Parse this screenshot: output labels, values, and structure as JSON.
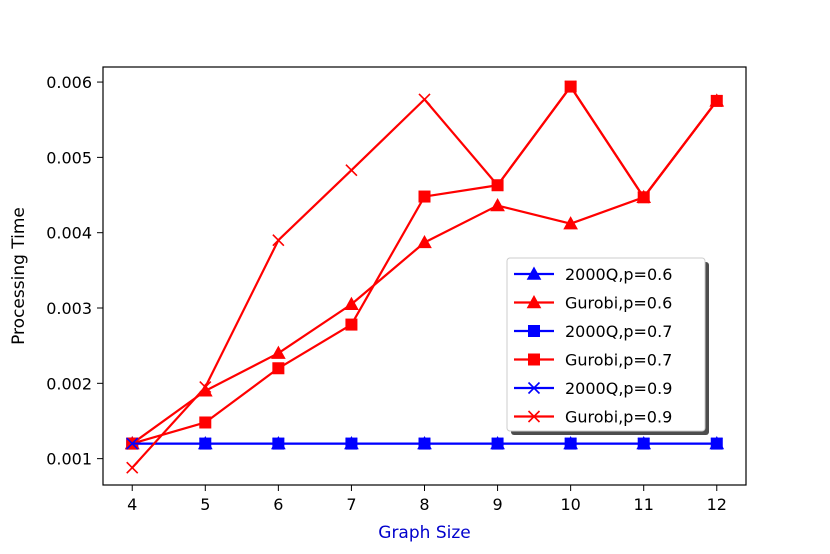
{
  "chart_data": {
    "type": "line",
    "title": "",
    "xlabel": "Graph Size",
    "ylabel": "Processing Time",
    "xlim": [
      3.6,
      12.4
    ],
    "ylim": [
      0.00065,
      0.0062
    ],
    "x": [
      4,
      5,
      6,
      7,
      8,
      9,
      10,
      11,
      12
    ],
    "xticks": [
      "4",
      "5",
      "6",
      "7",
      "8",
      "9",
      "10",
      "11",
      "12"
    ],
    "yticks": [
      {
        "value": 0.001,
        "label": "0.001"
      },
      {
        "value": 0.002,
        "label": "0.002"
      },
      {
        "value": 0.003,
        "label": "0.003"
      },
      {
        "value": 0.004,
        "label": "0.004"
      },
      {
        "value": 0.005,
        "label": "0.005"
      },
      {
        "value": 0.006,
        "label": "0.006"
      }
    ],
    "grid": false,
    "legend_position": "lower-right",
    "colors": {
      "blue": "#0000ff",
      "red": "#ff0000",
      "xlabel": "#0000cc"
    },
    "series": [
      {
        "name": "2000Q,p=0.6",
        "color": "#0000ff",
        "marker": "triangle",
        "values": [
          0.0012,
          0.0012,
          0.0012,
          0.0012,
          0.0012,
          0.0012,
          0.0012,
          0.0012,
          0.0012
        ]
      },
      {
        "name": "Gurobi,p=0.6",
        "color": "#ff0000",
        "marker": "triangle",
        "values": [
          0.0012,
          0.0019,
          0.0024,
          0.00305,
          0.00387,
          0.00436,
          0.00412,
          0.00447,
          0.00575
        ]
      },
      {
        "name": "2000Q,p=0.7",
        "color": "#0000ff",
        "marker": "square",
        "values": [
          0.0012,
          0.0012,
          0.0012,
          0.0012,
          0.0012,
          0.0012,
          0.0012,
          0.0012,
          0.0012
        ]
      },
      {
        "name": "Gurobi,p=0.7",
        "color": "#ff0000",
        "marker": "square",
        "values": [
          0.0012,
          0.00148,
          0.0022,
          0.00278,
          0.00448,
          0.00463,
          0.00594,
          0.00447,
          0.00575
        ]
      },
      {
        "name": "2000Q,p=0.9",
        "color": "#0000ff",
        "marker": "x",
        "values": [
          0.0012,
          0.0012,
          0.0012,
          0.0012,
          0.0012,
          0.0012,
          0.0012,
          0.0012,
          0.0012
        ]
      },
      {
        "name": "Gurobi,p=0.9",
        "color": "#ff0000",
        "marker": "x",
        "values": [
          0.00088,
          0.00195,
          0.0039,
          0.00483,
          0.00577,
          0.00463,
          0.00594,
          0.00447,
          0.00575
        ]
      }
    ]
  }
}
